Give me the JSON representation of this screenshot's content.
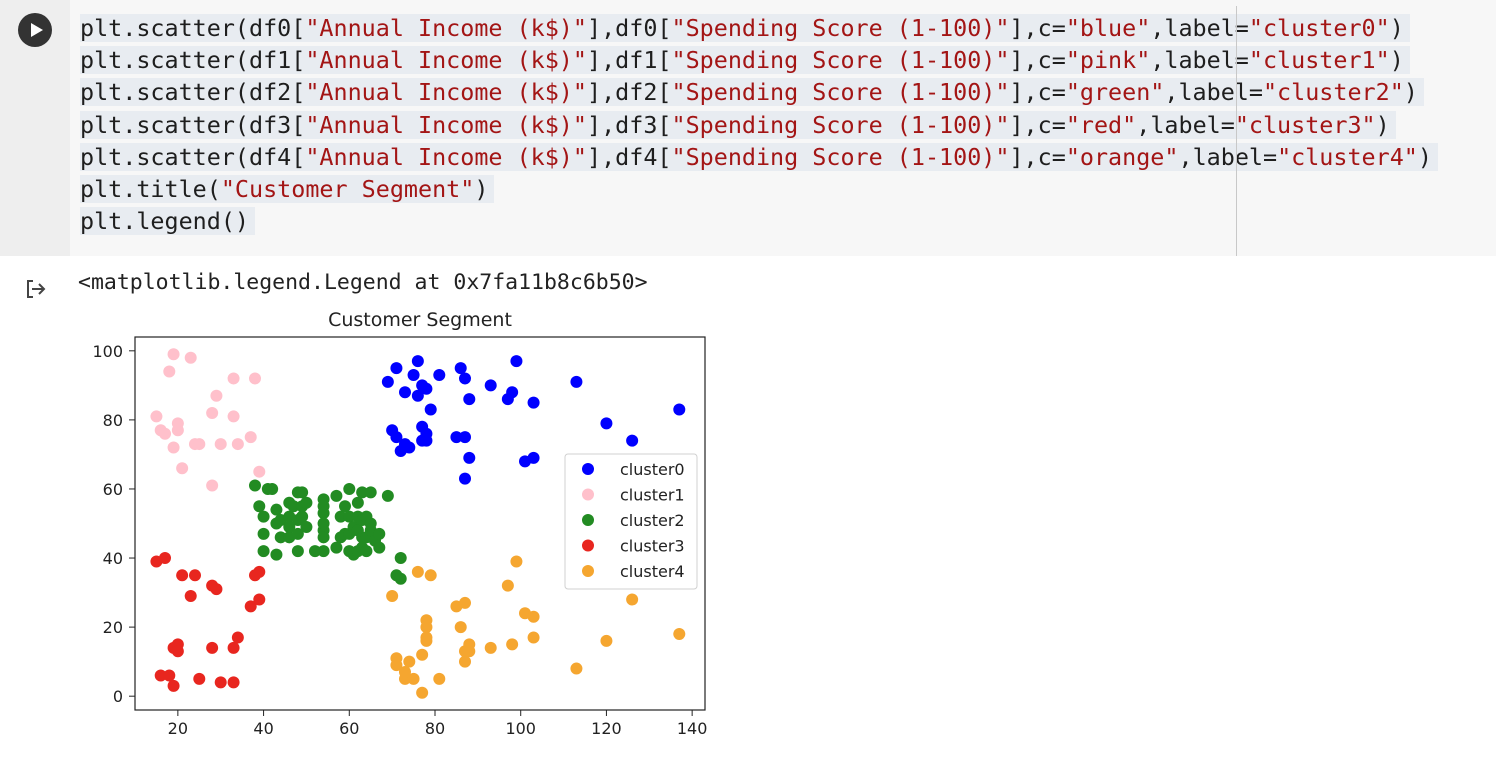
{
  "run_button": {
    "icon": "play-icon"
  },
  "code_lines": [
    [
      "plt.scatter(df0[",
      {
        "s": "\"Annual Income (k$)\""
      },
      "],df0[",
      {
        "s": "\"Spending Score (1-100)\""
      },
      "],c=",
      {
        "s": "\"blue\""
      },
      ",label=",
      {
        "s": "\"cluster0\""
      },
      ")"
    ],
    [
      "plt.scatter(df1[",
      {
        "s": "\"Annual Income (k$)\""
      },
      "],df1[",
      {
        "s": "\"Spending Score (1-100)\""
      },
      "],c=",
      {
        "s": "\"pink\""
      },
      ",label=",
      {
        "s": "\"cluster1\""
      },
      ")"
    ],
    [
      "plt.scatter(df2[",
      {
        "s": "\"Annual Income (k$)\""
      },
      "],df2[",
      {
        "s": "\"Spending Score (1-100)\""
      },
      "],c=",
      {
        "s": "\"green\""
      },
      ",label=",
      {
        "s": "\"cluster2\""
      },
      ")"
    ],
    [
      "plt.scatter(df3[",
      {
        "s": "\"Annual Income (k$)\""
      },
      "],df3[",
      {
        "s": "\"Spending Score (1-100)\""
      },
      "],c=",
      {
        "s": "\"red\""
      },
      ",label=",
      {
        "s": "\"cluster3\""
      },
      ")"
    ],
    [
      "plt.scatter(df4[",
      {
        "s": "\"Annual Income (k$)\""
      },
      "],df4[",
      {
        "s": "\"Spending Score (1-100)\""
      },
      "],c=",
      {
        "s": "\"orange\""
      },
      ",label=",
      {
        "s": "\"cluster4\""
      },
      ")"
    ],
    [
      "plt.title(",
      {
        "s": "\"Customer Segment\""
      },
      ")"
    ],
    [
      "plt.legend()"
    ]
  ],
  "output": {
    "icon": "output-arrow-icon",
    "text": "<matplotlib.legend.Legend at 0x7fa11b8c6b50>"
  },
  "chart_data": {
    "type": "scatter",
    "title": "Customer Segment",
    "xlabel": "",
    "ylabel": "",
    "xlim": [
      10,
      143
    ],
    "ylim": [
      -4,
      104
    ],
    "xticks": [
      20,
      40,
      60,
      80,
      100,
      120,
      140
    ],
    "yticks": [
      0,
      20,
      40,
      60,
      80,
      100
    ],
    "grid": false,
    "legend_position": "right",
    "series": [
      {
        "name": "cluster0",
        "color": "#0000ff",
        "points": [
          [
            69,
            91
          ],
          [
            70,
            77
          ],
          [
            71,
            95
          ],
          [
            71,
            75
          ],
          [
            72,
            71
          ],
          [
            73,
            73
          ],
          [
            73,
            88
          ],
          [
            74,
            72
          ],
          [
            75,
            93
          ],
          [
            76,
            87
          ],
          [
            76,
            97
          ],
          [
            77,
            74
          ],
          [
            77,
            78
          ],
          [
            77,
            90
          ],
          [
            78,
            89
          ],
          [
            78,
            76
          ],
          [
            78,
            74
          ],
          [
            79,
            83
          ],
          [
            81,
            93
          ],
          [
            85,
            75
          ],
          [
            86,
            95
          ],
          [
            87,
            63
          ],
          [
            87,
            75
          ],
          [
            87,
            92
          ],
          [
            88,
            86
          ],
          [
            88,
            69
          ],
          [
            93,
            90
          ],
          [
            97,
            86
          ],
          [
            98,
            88
          ],
          [
            99,
            97
          ],
          [
            101,
            68
          ],
          [
            103,
            69
          ],
          [
            103,
            85
          ],
          [
            113,
            91
          ],
          [
            120,
            79
          ],
          [
            126,
            74
          ],
          [
            137,
            83
          ]
        ]
      },
      {
        "name": "cluster1",
        "color": "#ffc0cb",
        "points": [
          [
            15,
            81
          ],
          [
            16,
            77
          ],
          [
            17,
            76
          ],
          [
            18,
            94
          ],
          [
            19,
            99
          ],
          [
            19,
            72
          ],
          [
            20,
            77
          ],
          [
            20,
            79
          ],
          [
            21,
            66
          ],
          [
            23,
            98
          ],
          [
            24,
            73
          ],
          [
            25,
            73
          ],
          [
            28,
            82
          ],
          [
            28,
            61
          ],
          [
            29,
            87
          ],
          [
            30,
            73
          ],
          [
            33,
            81
          ],
          [
            33,
            92
          ],
          [
            34,
            73
          ],
          [
            37,
            75
          ],
          [
            38,
            92
          ],
          [
            39,
            65
          ]
        ]
      },
      {
        "name": "cluster2",
        "color": "#228b22",
        "points": [
          [
            38,
            61
          ],
          [
            39,
            55
          ],
          [
            40,
            47
          ],
          [
            40,
            42
          ],
          [
            40,
            52
          ],
          [
            41,
            60
          ],
          [
            42,
            60
          ],
          [
            43,
            54
          ],
          [
            43,
            41
          ],
          [
            43,
            50
          ],
          [
            44,
            46
          ],
          [
            44,
            51
          ],
          [
            46,
            46
          ],
          [
            46,
            56
          ],
          [
            46,
            52
          ],
          [
            46,
            49
          ],
          [
            47,
            55
          ],
          [
            48,
            59
          ],
          [
            48,
            51
          ],
          [
            48,
            47
          ],
          [
            48,
            42
          ],
          [
            49,
            59
          ],
          [
            49,
            52
          ],
          [
            49,
            55
          ],
          [
            50,
            56
          ],
          [
            50,
            49
          ],
          [
            52,
            42
          ],
          [
            54,
            55
          ],
          [
            54,
            48
          ],
          [
            54,
            57
          ],
          [
            54,
            50
          ],
          [
            54,
            46
          ],
          [
            54,
            53
          ],
          [
            54,
            42
          ],
          [
            57,
            43
          ],
          [
            57,
            58
          ],
          [
            58,
            52
          ],
          [
            58,
            46
          ],
          [
            59,
            47
          ],
          [
            59,
            55
          ],
          [
            60,
            60
          ],
          [
            60,
            42
          ],
          [
            60,
            47
          ],
          [
            60,
            52
          ],
          [
            61,
            41
          ],
          [
            61,
            49
          ],
          [
            62,
            42
          ],
          [
            62,
            56
          ],
          [
            62,
            48
          ],
          [
            62,
            52
          ],
          [
            63,
            59
          ],
          [
            63,
            43
          ],
          [
            63,
            51
          ],
          [
            63,
            46
          ],
          [
            64,
            42
          ],
          [
            64,
            46
          ],
          [
            64,
            52
          ],
          [
            65,
            59
          ],
          [
            65,
            50
          ],
          [
            65,
            48
          ],
          [
            66,
            45
          ],
          [
            67,
            47
          ],
          [
            67,
            43
          ],
          [
            69,
            58
          ],
          [
            71,
            35
          ],
          [
            72,
            34
          ],
          [
            72,
            40
          ]
        ]
      },
      {
        "name": "cluster3",
        "color": "#e8261f",
        "points": [
          [
            15,
            39
          ],
          [
            16,
            6
          ],
          [
            17,
            40
          ],
          [
            18,
            6
          ],
          [
            19,
            3
          ],
          [
            19,
            14
          ],
          [
            20,
            15
          ],
          [
            20,
            13
          ],
          [
            21,
            35
          ],
          [
            23,
            29
          ],
          [
            24,
            35
          ],
          [
            25,
            5
          ],
          [
            28,
            14
          ],
          [
            28,
            32
          ],
          [
            29,
            31
          ],
          [
            30,
            4
          ],
          [
            33,
            4
          ],
          [
            33,
            14
          ],
          [
            34,
            17
          ],
          [
            37,
            26
          ],
          [
            38,
            35
          ],
          [
            39,
            36
          ],
          [
            39,
            28
          ]
        ]
      },
      {
        "name": "cluster4",
        "color": "#f5a630",
        "points": [
          [
            70,
            29
          ],
          [
            71,
            11
          ],
          [
            71,
            9
          ],
          [
            73,
            5
          ],
          [
            73,
            7
          ],
          [
            74,
            10
          ],
          [
            75,
            5
          ],
          [
            76,
            36
          ],
          [
            77,
            12
          ],
          [
            77,
            1
          ],
          [
            78,
            16
          ],
          [
            78,
            20
          ],
          [
            78,
            22
          ],
          [
            78,
            17
          ],
          [
            79,
            35
          ],
          [
            81,
            5
          ],
          [
            85,
            26
          ],
          [
            86,
            20
          ],
          [
            87,
            10
          ],
          [
            87,
            27
          ],
          [
            87,
            13
          ],
          [
            88,
            13
          ],
          [
            88,
            15
          ],
          [
            93,
            14
          ],
          [
            97,
            32
          ],
          [
            98,
            15
          ],
          [
            99,
            39
          ],
          [
            101,
            24
          ],
          [
            103,
            17
          ],
          [
            103,
            23
          ],
          [
            113,
            8
          ],
          [
            120,
            16
          ],
          [
            126,
            28
          ],
          [
            137,
            18
          ]
        ]
      }
    ]
  }
}
